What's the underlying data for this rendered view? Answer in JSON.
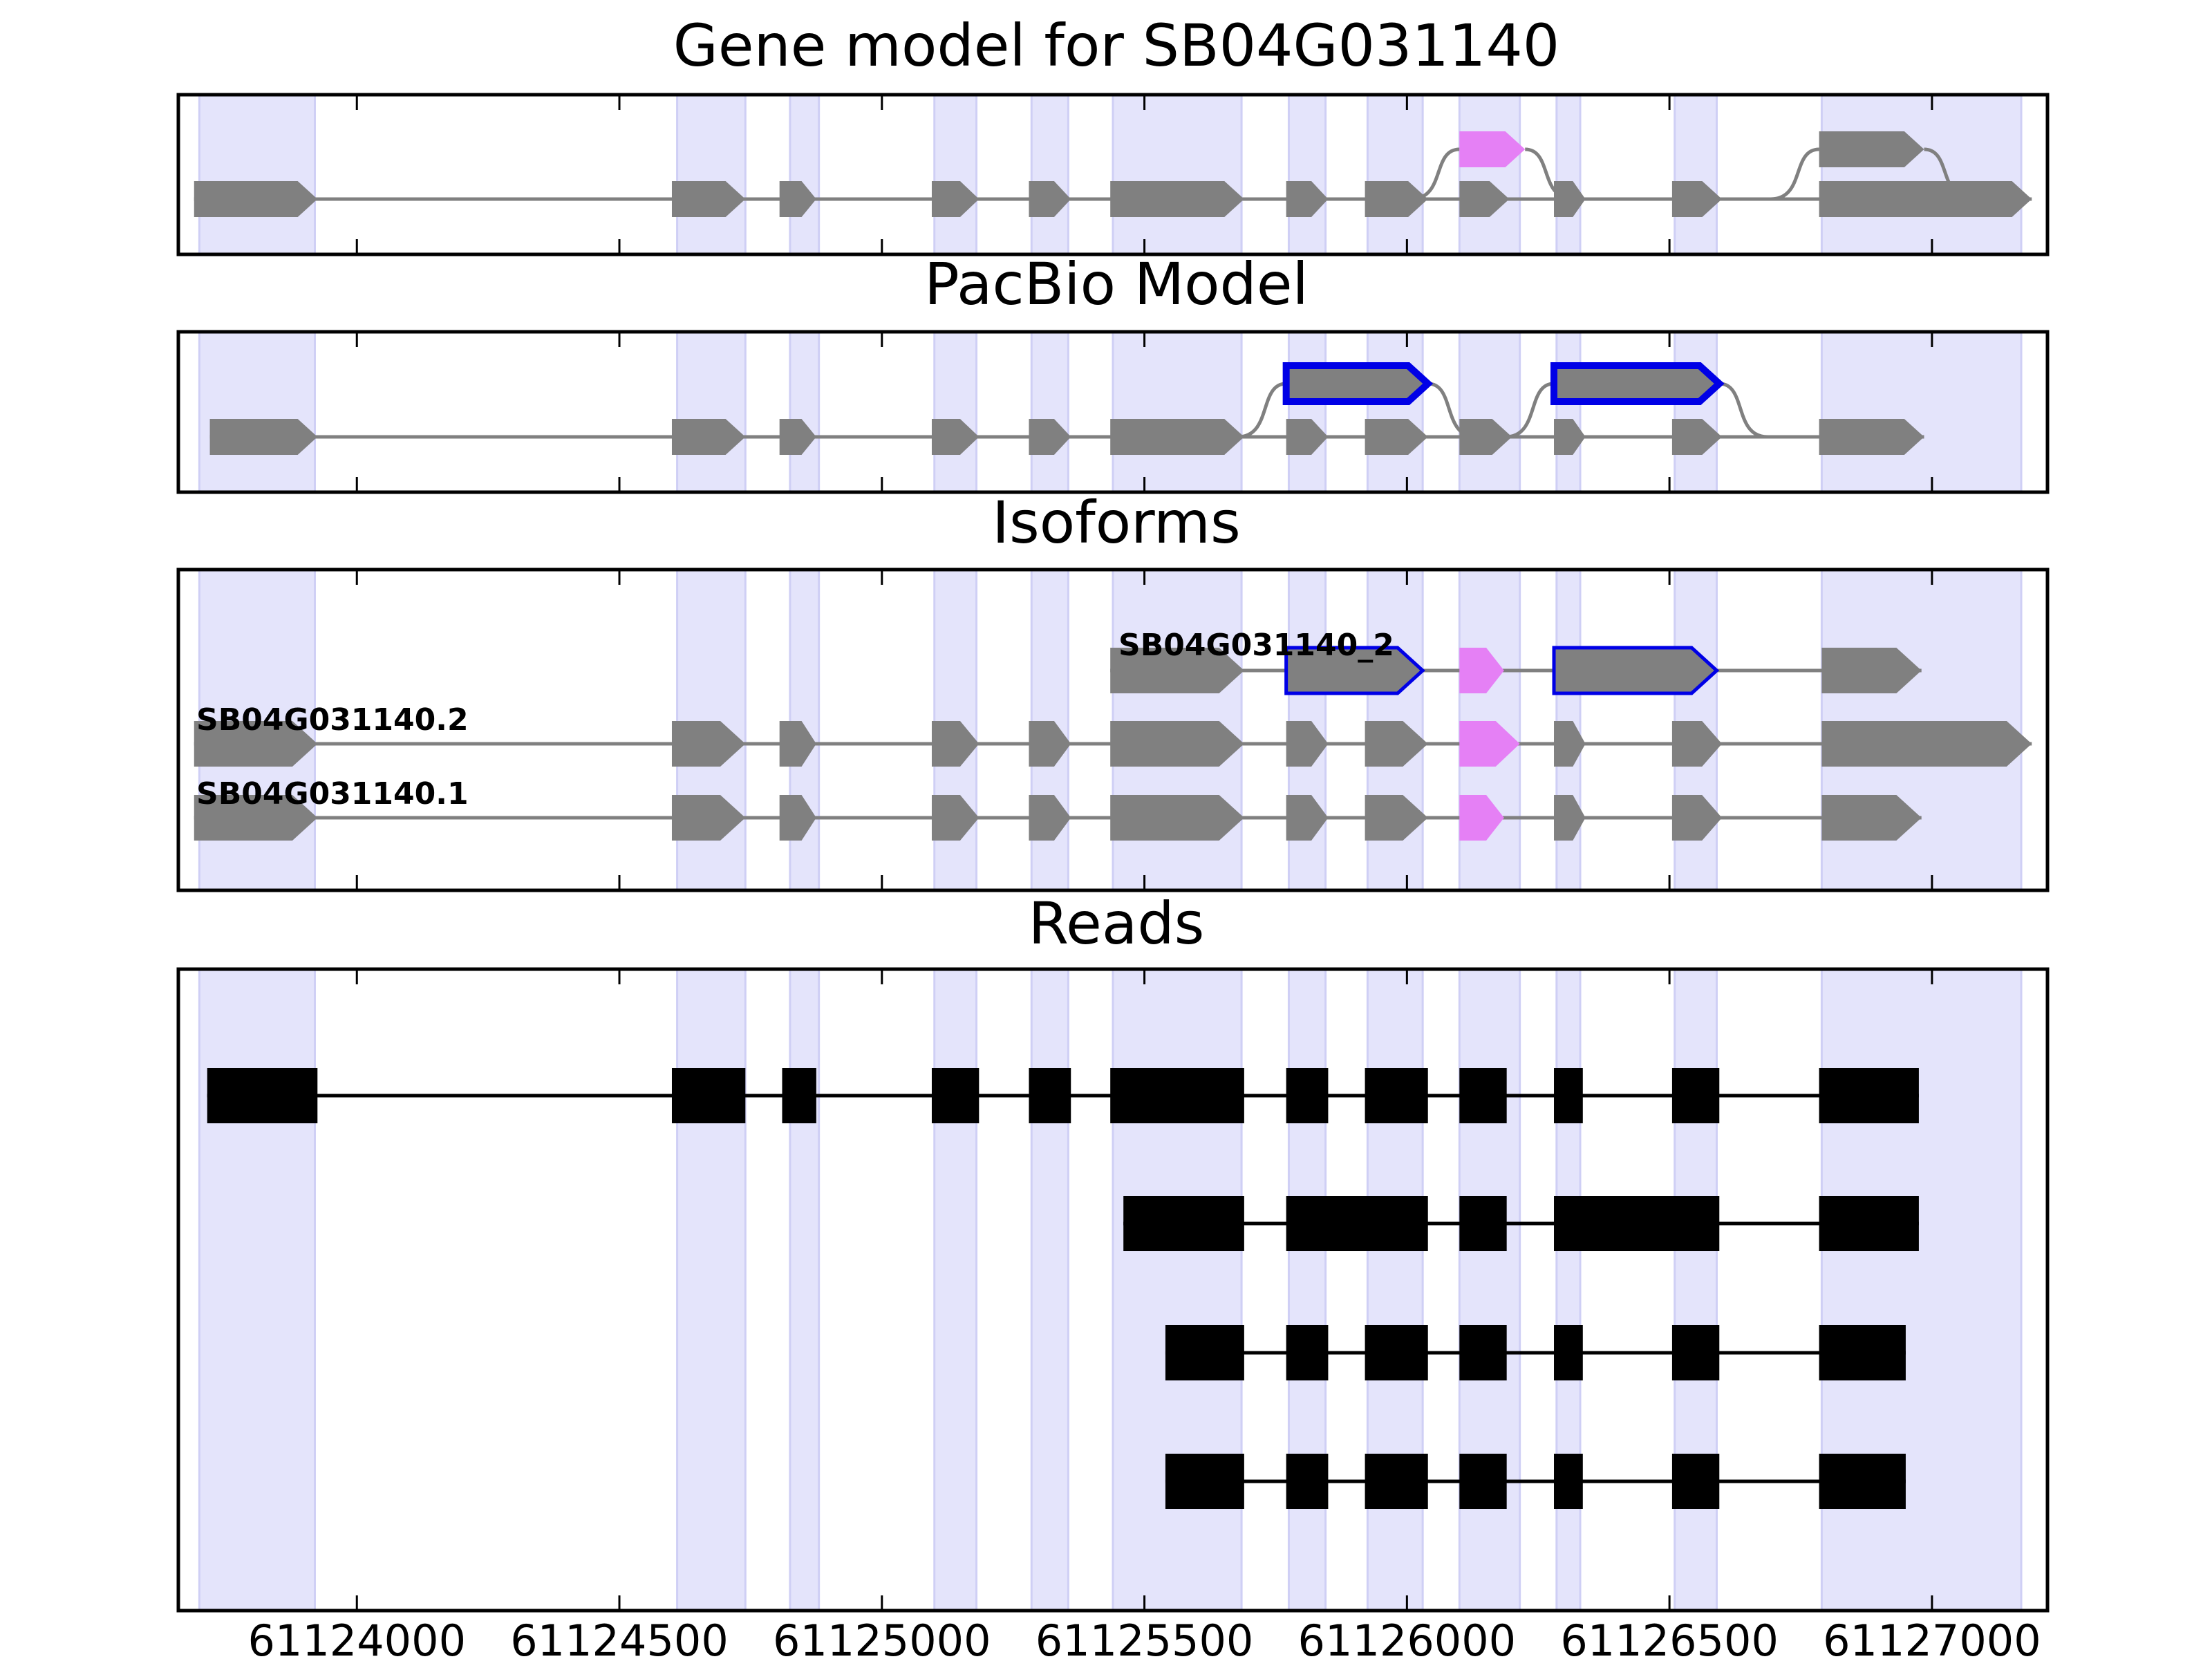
{
  "chart_data": {
    "type": "gene-model",
    "xlim": [
      61123660,
      61127220
    ],
    "x_ticks": [
      {
        "value": 61124000,
        "label": "61124000"
      },
      {
        "value": 61124500,
        "label": "61124500"
      },
      {
        "value": 61125000,
        "label": "61125000"
      },
      {
        "value": 61125500,
        "label": "61125500"
      },
      {
        "value": 61126000,
        "label": "61126000"
      },
      {
        "value": 61126500,
        "label": "61126500"
      },
      {
        "value": 61127000,
        "label": "61127000"
      }
    ],
    "highlight_regions": [
      [
        61123700,
        61123920
      ],
      [
        61124610,
        61124740
      ],
      [
        61124825,
        61124880
      ],
      [
        61125100,
        61125180
      ],
      [
        61125285,
        61125355
      ],
      [
        61125440,
        61125685
      ],
      [
        61125775,
        61125845
      ],
      [
        61125925,
        61126030
      ],
      [
        61126100,
        61126215
      ],
      [
        61126285,
        61126330
      ],
      [
        61126510,
        61126590
      ],
      [
        61126790,
        61127170
      ]
    ],
    "colors": {
      "exon": "#808080",
      "alt_exon": "#e580f5",
      "highlight": "#e4e4fb",
      "highlight_edge": "#cfcff5",
      "novel_outline": "#0000e6",
      "read": "#000000",
      "intron": "#808080"
    },
    "panels": [
      {
        "title": "Gene model for SB04G031140",
        "rows": [
          {
            "label": "",
            "exons": [
              [
                61123690,
                61123925,
                "exon"
              ],
              [
                61124600,
                61124740,
                "exon"
              ],
              [
                61124805,
                61124875,
                "exon"
              ],
              [
                61125095,
                61125185,
                "exon"
              ],
              [
                61125280,
                61125360,
                "exon"
              ],
              [
                61125435,
                61125690,
                "exon"
              ],
              [
                61125770,
                61125850,
                "exon"
              ],
              [
                61125920,
                61126040,
                "exon"
              ],
              [
                61126100,
                61126195,
                "exon"
              ],
              [
                61126280,
                61126340,
                "exon"
              ],
              [
                61126505,
                61126600,
                "exon"
              ],
              [
                61126785,
                61127190,
                "exon"
              ]
            ]
          },
          {
            "label": "",
            "exons": [
              [
                61126100,
                61126225,
                "alt"
              ],
              [
                61126785,
                61126985,
                "exon"
              ]
            ]
          }
        ]
      },
      {
        "title": "PacBio Model",
        "rows": [
          {
            "label": "",
            "exons": [
              [
                61123720,
                61123925,
                "exon"
              ],
              [
                61124600,
                61124740,
                "exon"
              ],
              [
                61124805,
                61124875,
                "exon"
              ],
              [
                61125095,
                61125185,
                "exon"
              ],
              [
                61125280,
                61125360,
                "exon"
              ],
              [
                61125435,
                61125690,
                "exon"
              ],
              [
                61125770,
                61125850,
                "exon"
              ],
              [
                61125920,
                61126040,
                "exon"
              ],
              [
                61126100,
                61126200,
                "exon"
              ],
              [
                61126280,
                61126340,
                "exon"
              ],
              [
                61126505,
                61126600,
                "exon"
              ],
              [
                61126785,
                61126985,
                "exon"
              ]
            ]
          },
          {
            "label": "",
            "exons": [
              [
                61125770,
                61126040,
                "novel"
              ],
              [
                61126280,
                61126595,
                "novel"
              ]
            ]
          }
        ]
      },
      {
        "title": "Isoforms",
        "rows": [
          {
            "label": "SB04G031140_2",
            "exons": [
              [
                61125435,
                61125690,
                "exon"
              ],
              [
                61125770,
                61126030,
                "novel"
              ],
              [
                61126100,
                61126185,
                "alt"
              ],
              [
                61126280,
                61126590,
                "novel"
              ],
              [
                61126790,
                61126980,
                "exon"
              ]
            ]
          },
          {
            "label": "SB04G031140.2",
            "exons": [
              [
                61123690,
                61123925,
                "exon"
              ],
              [
                61124600,
                61124740,
                "exon"
              ],
              [
                61124805,
                61124875,
                "exon"
              ],
              [
                61125095,
                61125185,
                "exon"
              ],
              [
                61125280,
                61125360,
                "exon"
              ],
              [
                61125435,
                61125690,
                "exon"
              ],
              [
                61125770,
                61125850,
                "exon"
              ],
              [
                61125920,
                61126040,
                "exon"
              ],
              [
                61126100,
                61126215,
                "alt"
              ],
              [
                61126280,
                61126340,
                "exon"
              ],
              [
                61126505,
                61126600,
                "exon"
              ],
              [
                61126790,
                61127190,
                "exon"
              ]
            ]
          },
          {
            "label": "SB04G031140.1",
            "exons": [
              [
                61123690,
                61123925,
                "exon"
              ],
              [
                61124600,
                61124740,
                "exon"
              ],
              [
                61124805,
                61124875,
                "exon"
              ],
              [
                61125095,
                61125185,
                "exon"
              ],
              [
                61125280,
                61125360,
                "exon"
              ],
              [
                61125435,
                61125690,
                "exon"
              ],
              [
                61125770,
                61125850,
                "exon"
              ],
              [
                61125920,
                61126040,
                "exon"
              ],
              [
                61126100,
                61126185,
                "alt"
              ],
              [
                61126280,
                61126340,
                "exon"
              ],
              [
                61126505,
                61126600,
                "exon"
              ],
              [
                61126790,
                61126980,
                "exon"
              ]
            ]
          }
        ]
      },
      {
        "title": "Reads",
        "reads": [
          {
            "blocks": [
              [
                61123715,
                61123925
              ],
              [
                61124600,
                61124740
              ],
              [
                61124810,
                61124875
              ],
              [
                61125095,
                61125185
              ],
              [
                61125280,
                61125360
              ],
              [
                61125435,
                61125690
              ],
              [
                61125770,
                61125850
              ],
              [
                61125920,
                61126040
              ],
              [
                61126100,
                61126190
              ],
              [
                61126280,
                61126335
              ],
              [
                61126505,
                61126595
              ],
              [
                61126785,
                61126975
              ]
            ]
          },
          {
            "blocks": [
              [
                61125460,
                61125690
              ],
              [
                61125770,
                61126040
              ],
              [
                61126100,
                61126190
              ],
              [
                61126280,
                61126595
              ],
              [
                61126785,
                61126975
              ]
            ]
          },
          {
            "blocks": [
              [
                61125540,
                61125690
              ],
              [
                61125770,
                61125850
              ],
              [
                61125920,
                61126040
              ],
              [
                61126100,
                61126190
              ],
              [
                61126280,
                61126335
              ],
              [
                61126505,
                61126595
              ],
              [
                61126785,
                61126950
              ]
            ]
          },
          {
            "blocks": [
              [
                61125540,
                61125690
              ],
              [
                61125770,
                61125850
              ],
              [
                61125920,
                61126040
              ],
              [
                61126100,
                61126190
              ],
              [
                61126280,
                61126335
              ],
              [
                61126505,
                61126595
              ],
              [
                61126785,
                61126950
              ]
            ]
          }
        ]
      }
    ]
  }
}
